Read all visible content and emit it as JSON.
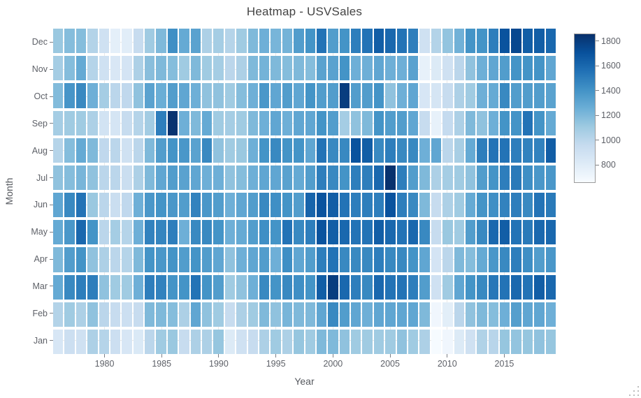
{
  "figure": {
    "title": "Heatmap - USVSales",
    "x_axis": {
      "label": "Year",
      "tick_years": [
        1980,
        1985,
        1990,
        1995,
        2000,
        2005,
        2010,
        2015
      ]
    },
    "y_axis": {
      "label": "Month"
    },
    "colorbar": {
      "tick_values": [
        1800,
        1600,
        1400,
        1200,
        1000,
        800
      ]
    }
  },
  "chart_data": {
    "type": "heatmap",
    "title": "Heatmap - USVSales",
    "xlabel": "Year",
    "ylabel": "Month",
    "legend_position": "right-colorbar",
    "grid": "light-gray-under-cells",
    "years": [
      1976,
      1977,
      1978,
      1979,
      1980,
      1981,
      1982,
      1983,
      1984,
      1985,
      1986,
      1987,
      1988,
      1989,
      1990,
      1991,
      1992,
      1993,
      1994,
      1995,
      1996,
      1997,
      1998,
      1999,
      2000,
      2001,
      2002,
      2003,
      2004,
      2005,
      2006,
      2007,
      2008,
      2009,
      2010,
      2011,
      2012,
      2013,
      2014,
      2015,
      2016,
      2017,
      2018,
      2019
    ],
    "month_order_top_to_bottom": [
      "Dec",
      "Nov",
      "Oct",
      "Sep",
      "Aug",
      "Jul",
      "Jun",
      "May",
      "Apr",
      "Mar",
      "Feb",
      "Jan"
    ],
    "zmin": 656,
    "zmax": 1860,
    "colorscale_name": "Blues",
    "colorscale_stops": [
      {
        "t": 0.0,
        "color": "#f7fbff"
      },
      {
        "t": 0.125,
        "color": "#deebf7"
      },
      {
        "t": 0.25,
        "color": "#c6dbef"
      },
      {
        "t": 0.375,
        "color": "#9ecae1"
      },
      {
        "t": 0.5,
        "color": "#6baed6"
      },
      {
        "t": 0.625,
        "color": "#4292c6"
      },
      {
        "t": 0.75,
        "color": "#2171b5"
      },
      {
        "t": 0.875,
        "color": "#08519c"
      },
      {
        "t": 1.0,
        "color": "#08306b"
      }
    ],
    "values": {
      "Jan": [
        850,
        920,
        900,
        1050,
        1020,
        920,
        850,
        830,
        1000,
        1100,
        1120,
        950,
        1050,
        1050,
        1130,
        820,
        900,
        950,
        1050,
        1100,
        1050,
        1130,
        1100,
        1200,
        1200,
        1150,
        1100,
        1100,
        1100,
        1100,
        1150,
        1100,
        1050,
        660,
        700,
        820,
        900,
        1040,
        1010,
        1130,
        1140,
        1130,
        1150,
        1130
      ],
      "Feb": [
        1030,
        1100,
        1050,
        1150,
        1000,
        950,
        920,
        950,
        1200,
        1200,
        1180,
        1050,
        1300,
        1150,
        1100,
        950,
        1050,
        1100,
        1200,
        1150,
        1220,
        1200,
        1200,
        1300,
        1450,
        1350,
        1300,
        1250,
        1300,
        1300,
        1300,
        1300,
        1200,
        700,
        780,
        1000,
        1150,
        1200,
        1180,
        1250,
        1340,
        1300,
        1300,
        1250
      ],
      "Mar": [
        1280,
        1450,
        1500,
        1500,
        1150,
        1100,
        1100,
        1250,
        1500,
        1480,
        1400,
        1400,
        1550,
        1400,
        1350,
        1100,
        1150,
        1250,
        1450,
        1400,
        1450,
        1420,
        1400,
        1650,
        1800,
        1600,
        1500,
        1450,
        1600,
        1550,
        1550,
        1500,
        1350,
        900,
        1100,
        1300,
        1400,
        1450,
        1530,
        1550,
        1600,
        1550,
        1650,
        1600
      ],
      "Apr": [
        1200,
        1350,
        1400,
        1150,
        1050,
        1000,
        1020,
        1200,
        1400,
        1380,
        1400,
        1350,
        1400,
        1350,
        1300,
        1150,
        1250,
        1300,
        1350,
        1250,
        1420,
        1300,
        1350,
        1500,
        1550,
        1450,
        1450,
        1450,
        1500,
        1450,
        1450,
        1400,
        1300,
        870,
        1000,
        1200,
        1180,
        1280,
        1380,
        1450,
        1500,
        1420,
        1350,
        1380
      ],
      "May": [
        1280,
        1380,
        1600,
        1400,
        1000,
        1080,
        1020,
        1250,
        1480,
        1470,
        1500,
        1250,
        1450,
        1450,
        1400,
        1250,
        1280,
        1350,
        1420,
        1400,
        1550,
        1450,
        1500,
        1700,
        1650,
        1600,
        1550,
        1550,
        1650,
        1600,
        1550,
        1600,
        1450,
        950,
        1120,
        1100,
        1350,
        1450,
        1600,
        1650,
        1550,
        1520,
        1600,
        1600
      ],
      "Jun": [
        1300,
        1450,
        1550,
        1120,
        1000,
        930,
        980,
        1250,
        1380,
        1400,
        1380,
        1350,
        1480,
        1380,
        1350,
        1250,
        1300,
        1350,
        1450,
        1420,
        1400,
        1350,
        1620,
        1700,
        1650,
        1550,
        1500,
        1500,
        1500,
        1700,
        1500,
        1450,
        1200,
        950,
        1050,
        1100,
        1280,
        1400,
        1420,
        1480,
        1500,
        1450,
        1550,
        1520
      ],
      "Jul": [
        1150,
        1180,
        1220,
        1150,
        1000,
        1000,
        930,
        1050,
        1200,
        1300,
        1350,
        1320,
        1300,
        1250,
        1250,
        1150,
        1180,
        1250,
        1300,
        1300,
        1320,
        1280,
        1350,
        1500,
        1450,
        1400,
        1500,
        1500,
        1600,
        1850,
        1500,
        1350,
        1200,
        1050,
        1080,
        1100,
        1150,
        1350,
        1400,
        1500,
        1520,
        1420,
        1380,
        1380
      ],
      "Aug": [
        1020,
        1180,
        1280,
        1200,
        980,
        1000,
        900,
        1000,
        1200,
        1350,
        1400,
        1380,
        1320,
        1450,
        1150,
        1100,
        1120,
        1250,
        1400,
        1450,
        1400,
        1400,
        1300,
        1550,
        1450,
        1450,
        1700,
        1650,
        1450,
        1500,
        1450,
        1450,
        1250,
        1300,
        1000,
        1070,
        1280,
        1500,
        1550,
        1550,
        1500,
        1480,
        1480,
        1650
      ],
      "Sep": [
        1080,
        1100,
        1100,
        1050,
        880,
        860,
        950,
        1020,
        1090,
        1500,
        1845,
        1250,
        1200,
        1280,
        1100,
        1080,
        1100,
        1200,
        1250,
        1300,
        1250,
        1300,
        1300,
        1400,
        1350,
        1080,
        1150,
        1200,
        1400,
        1350,
        1350,
        1300,
        950,
        750,
        960,
        1050,
        1200,
        1150,
        1250,
        1400,
        1400,
        1550,
        1400,
        1280
      ],
      "Oct": [
        1190,
        1390,
        1450,
        1250,
        1080,
        1000,
        980,
        1150,
        1320,
        1260,
        1350,
        1300,
        1250,
        1150,
        1150,
        1100,
        1180,
        1250,
        1380,
        1300,
        1350,
        1300,
        1400,
        1350,
        1350,
        1800,
        1350,
        1350,
        1400,
        1150,
        1250,
        1300,
        850,
        860,
        950,
        1050,
        1100,
        1250,
        1280,
        1450,
        1350,
        1350,
        1350,
        1320
      ],
      "Nov": [
        1080,
        1180,
        1280,
        1020,
        900,
        840,
        870,
        1050,
        1170,
        1200,
        1180,
        1100,
        1200,
        1100,
        1080,
        1000,
        1050,
        1200,
        1230,
        1200,
        1180,
        1200,
        1180,
        1320,
        1320,
        1400,
        1250,
        1250,
        1300,
        1250,
        1250,
        1320,
        750,
        820,
        900,
        1000,
        1150,
        1250,
        1300,
        1350,
        1400,
        1400,
        1400,
        1300
      ],
      "Dec": [
        1120,
        1180,
        1180,
        1030,
        900,
        770,
        790,
        950,
        1100,
        1200,
        1420,
        1280,
        1320,
        1050,
        1080,
        1020,
        1100,
        1200,
        1250,
        1220,
        1230,
        1350,
        1400,
        1550,
        1350,
        1400,
        1500,
        1550,
        1650,
        1600,
        1550,
        1500,
        900,
        1030,
        1140,
        1240,
        1400,
        1400,
        1500,
        1700,
        1750,
        1650,
        1650,
        1600
      ]
    }
  }
}
